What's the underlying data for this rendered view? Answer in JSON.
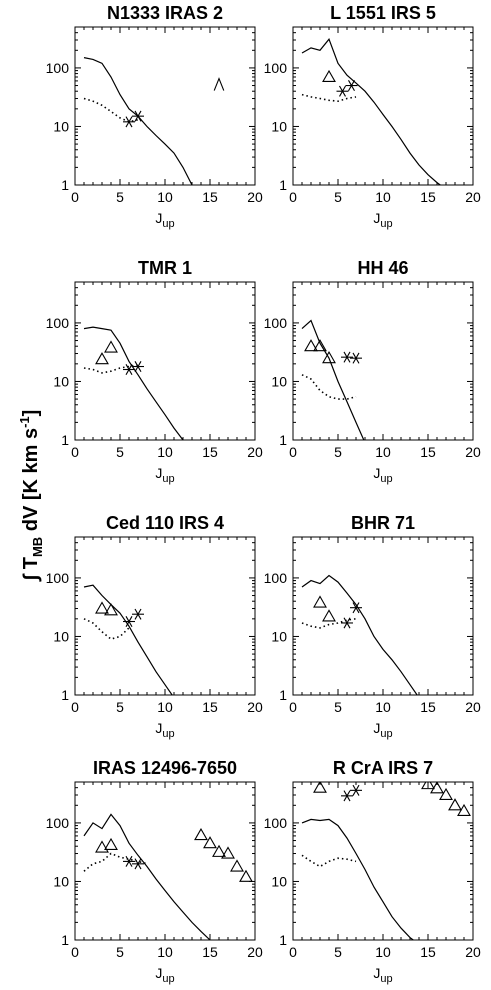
{
  "figure": {
    "y_label": "∫ T",
    "y_label_sub": "MB",
    "y_label_rest": " dV  [K km s",
    "y_label_sup": "-1",
    "y_label_end": "]"
  },
  "chart_data": [
    {
      "type": "line",
      "title": "N1333 IRAS 2",
      "xlabel": "J",
      "xlabel_sub": "up",
      "xlim": [
        0,
        20
      ],
      "ylim": [
        1,
        500
      ],
      "yscale": "log",
      "xticks": [
        0,
        5,
        10,
        15,
        20
      ],
      "yticks": [
        1,
        10,
        100
      ],
      "series": [
        {
          "style": "solid",
          "x": [
            1,
            2,
            3,
            4,
            5,
            6,
            7,
            8,
            9,
            10,
            11,
            12,
            13
          ],
          "y": [
            150,
            140,
            120,
            70,
            35,
            20,
            15,
            10,
            7,
            5,
            3.5,
            2,
            1
          ]
        },
        {
          "style": "dotted",
          "x": [
            1,
            2,
            3,
            4,
            5,
            6,
            7
          ],
          "y": [
            30,
            27,
            23,
            18,
            14,
            12,
            13
          ]
        }
      ],
      "markers": [
        {
          "symbol": "star",
          "x": [
            6,
            7
          ],
          "y": [
            12,
            15
          ]
        },
        {
          "symbol": "caret",
          "x": [
            16
          ],
          "y": [
            52
          ]
        }
      ]
    },
    {
      "type": "line",
      "title": "L 1551 IRS 5",
      "xlabel": "J",
      "xlabel_sub": "up",
      "xlim": [
        0,
        20
      ],
      "ylim": [
        1,
        500
      ],
      "yscale": "log",
      "xticks": [
        0,
        5,
        10,
        15,
        20
      ],
      "yticks": [
        1,
        10,
        100
      ],
      "series": [
        {
          "style": "solid",
          "x": [
            1,
            2,
            3,
            4,
            5,
            6,
            7,
            8,
            9,
            10,
            11,
            12,
            13,
            14,
            15,
            16,
            17
          ],
          "y": [
            180,
            220,
            200,
            310,
            120,
            75,
            55,
            40,
            26,
            16,
            10,
            6,
            3.5,
            2.2,
            1.5,
            1.1,
            0.85
          ]
        },
        {
          "style": "dotted",
          "x": [
            1,
            2,
            3,
            4,
            5,
            6,
            7
          ],
          "y": [
            35,
            32,
            30,
            28,
            27,
            30,
            32
          ]
        }
      ],
      "markers": [
        {
          "symbol": "triangle",
          "x": [
            4
          ],
          "y": [
            70
          ]
        },
        {
          "symbol": "star",
          "x": [
            5.5,
            6.5
          ],
          "y": [
            40,
            50
          ]
        }
      ]
    },
    {
      "type": "line",
      "title": "TMR 1",
      "xlabel": "J",
      "xlabel_sub": "up",
      "xlim": [
        0,
        20
      ],
      "ylim": [
        1,
        500
      ],
      "yscale": "log",
      "xticks": [
        0,
        5,
        10,
        15,
        20
      ],
      "yticks": [
        1,
        10,
        100
      ],
      "series": [
        {
          "style": "solid",
          "x": [
            1,
            2,
            3,
            4,
            5,
            6,
            7,
            8,
            9,
            10,
            11,
            12
          ],
          "y": [
            80,
            85,
            80,
            75,
            45,
            22,
            13,
            7.5,
            4.5,
            2.7,
            1.6,
            1.0
          ]
        },
        {
          "style": "dotted",
          "x": [
            1,
            2,
            3,
            4,
            5,
            6,
            7
          ],
          "y": [
            17,
            16,
            14,
            15,
            17,
            18,
            19
          ]
        }
      ],
      "markers": [
        {
          "symbol": "triangle",
          "x": [
            3,
            4
          ],
          "y": [
            24,
            38
          ]
        },
        {
          "symbol": "star",
          "x": [
            6,
            7
          ],
          "y": [
            16,
            18
          ]
        }
      ]
    },
    {
      "type": "line",
      "title": "HH 46",
      "xlabel": "J",
      "xlabel_sub": "up",
      "xlim": [
        0,
        20
      ],
      "ylim": [
        1,
        500
      ],
      "yscale": "log",
      "xticks": [
        0,
        5,
        10,
        15,
        20
      ],
      "yticks": [
        1,
        10,
        100
      ],
      "series": [
        {
          "style": "solid",
          "x": [
            1,
            2,
            3,
            4,
            5,
            6,
            7,
            8
          ],
          "y": [
            80,
            110,
            45,
            25,
            10,
            4.5,
            2,
            0.9
          ]
        },
        {
          "style": "dotted",
          "x": [
            1,
            2,
            3,
            4,
            5,
            6,
            7
          ],
          "y": [
            13,
            11,
            7,
            5.5,
            5,
            5,
            5.5
          ]
        }
      ],
      "markers": [
        {
          "symbol": "triangle",
          "x": [
            2,
            3,
            4
          ],
          "y": [
            40,
            40,
            25
          ]
        },
        {
          "symbol": "star",
          "x": [
            6,
            7
          ],
          "y": [
            26,
            25
          ]
        }
      ]
    },
    {
      "type": "line",
      "title": "Ced 110 IRS 4",
      "xlabel": "J",
      "xlabel_sub": "up",
      "xlim": [
        0,
        20
      ],
      "ylim": [
        1,
        500
      ],
      "yscale": "log",
      "xticks": [
        0,
        5,
        10,
        15,
        20
      ],
      "yticks": [
        1,
        10,
        100
      ],
      "series": [
        {
          "style": "solid",
          "x": [
            1,
            2,
            3,
            4,
            5,
            6,
            7,
            8,
            9,
            10,
            11
          ],
          "y": [
            70,
            75,
            50,
            35,
            25,
            15,
            8,
            4.5,
            2.5,
            1.5,
            0.9
          ]
        },
        {
          "style": "dotted",
          "x": [
            1,
            2,
            3,
            4,
            5,
            6
          ],
          "y": [
            20,
            17,
            12,
            9,
            10,
            14
          ]
        }
      ],
      "markers": [
        {
          "symbol": "triangle",
          "x": [
            3,
            4
          ],
          "y": [
            30,
            28
          ]
        },
        {
          "symbol": "star",
          "x": [
            6,
            7
          ],
          "y": [
            18,
            24
          ]
        }
      ]
    },
    {
      "type": "line",
      "title": "BHR 71",
      "xlabel": "J",
      "xlabel_sub": "up",
      "xlim": [
        0,
        20
      ],
      "ylim": [
        1,
        500
      ],
      "yscale": "log",
      "xticks": [
        0,
        5,
        10,
        15,
        20
      ],
      "yticks": [
        1,
        10,
        100
      ],
      "series": [
        {
          "style": "solid",
          "x": [
            1,
            2,
            3,
            4,
            5,
            6,
            7,
            8,
            9,
            10,
            11,
            12,
            13,
            14
          ],
          "y": [
            70,
            90,
            80,
            110,
            85,
            55,
            35,
            20,
            10,
            6,
            4,
            2.5,
            1.5,
            0.9
          ]
        },
        {
          "style": "dotted",
          "x": [
            1,
            2,
            3,
            4,
            5,
            6,
            7
          ],
          "y": [
            17,
            15,
            14,
            16,
            17,
            19,
            20
          ]
        }
      ],
      "markers": [
        {
          "symbol": "triangle",
          "x": [
            3,
            4
          ],
          "y": [
            38,
            22
          ]
        },
        {
          "symbol": "star",
          "x": [
            6,
            7
          ],
          "y": [
            17,
            31
          ]
        }
      ]
    },
    {
      "type": "line",
      "title": "IRAS 12496-7650",
      "xlabel": "J",
      "xlabel_sub": "up",
      "xlim": [
        0,
        20
      ],
      "ylim": [
        1,
        500
      ],
      "yscale": "log",
      "xticks": [
        0,
        5,
        10,
        15,
        20
      ],
      "yticks": [
        1,
        10,
        100
      ],
      "series": [
        {
          "style": "solid",
          "x": [
            1,
            2,
            3,
            4,
            5,
            6,
            7,
            8,
            9,
            10,
            11,
            12,
            13,
            14,
            15,
            16
          ],
          "y": [
            60,
            100,
            80,
            140,
            90,
            45,
            28,
            18,
            11,
            7,
            4.5,
            3,
            2,
            1.4,
            1.0,
            0.85
          ]
        },
        {
          "style": "dotted",
          "x": [
            1,
            2,
            3,
            4,
            5,
            6,
            7,
            8
          ],
          "y": [
            15,
            20,
            22,
            30,
            26,
            24,
            22,
            20
          ]
        }
      ],
      "markers": [
        {
          "symbol": "triangle",
          "x": [
            3,
            4,
            14,
            15,
            16,
            17,
            18,
            19
          ],
          "y": [
            38,
            42,
            62,
            45,
            32,
            30,
            18,
            12
          ]
        },
        {
          "symbol": "star",
          "x": [
            6,
            7
          ],
          "y": [
            22,
            20
          ]
        }
      ]
    },
    {
      "type": "line",
      "title": "R CrA IRS 7",
      "xlabel": "J",
      "xlabel_sub": "up",
      "xlim": [
        0,
        20
      ],
      "ylim": [
        1,
        500
      ],
      "yscale": "log",
      "xticks": [
        0,
        5,
        10,
        15,
        20
      ],
      "yticks": [
        1,
        10,
        100
      ],
      "series": [
        {
          "style": "solid",
          "x": [
            1,
            2,
            3,
            4,
            5,
            6,
            7,
            8,
            9,
            10,
            11,
            12,
            13,
            14
          ],
          "y": [
            100,
            115,
            110,
            115,
            90,
            55,
            30,
            16,
            8,
            4.5,
            2.5,
            1.6,
            1.1,
            0.85
          ]
        },
        {
          "style": "dotted",
          "x": [
            1,
            2,
            3,
            4,
            5,
            6,
            7
          ],
          "y": [
            28,
            22,
            18,
            22,
            25,
            24,
            22
          ]
        }
      ],
      "markers": [
        {
          "symbol": "triangle",
          "x": [
            3,
            15,
            16,
            17,
            18,
            19
          ],
          "y": [
            400,
            460,
            390,
            300,
            200,
            160
          ]
        },
        {
          "symbol": "star",
          "x": [
            6,
            7
          ],
          "y": [
            290,
            360
          ]
        }
      ]
    }
  ]
}
